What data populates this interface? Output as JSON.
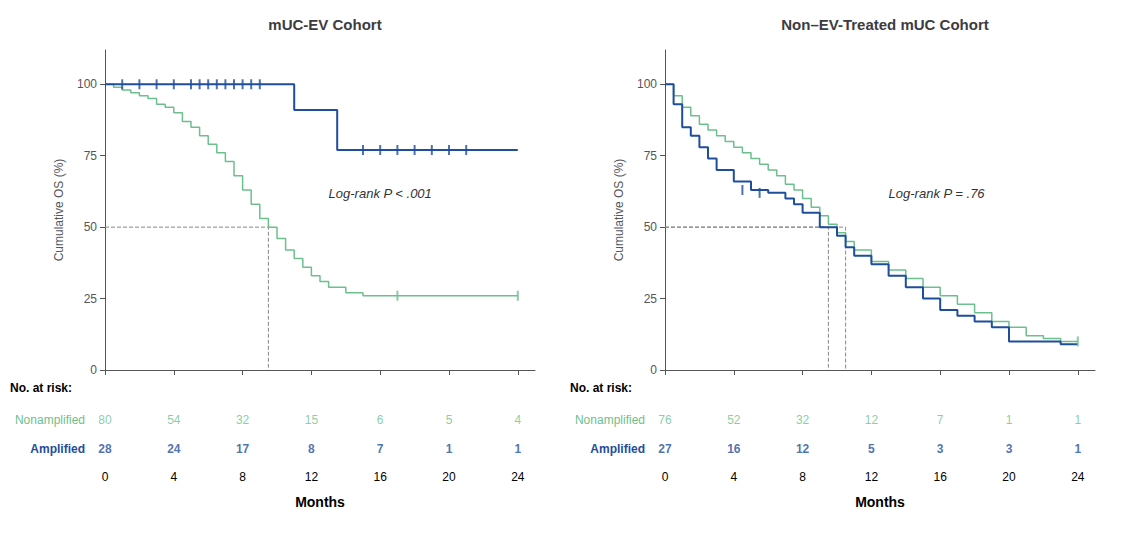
{
  "chart_data": [
    {
      "type": "step",
      "title": "mUC-EV Cohort",
      "xlabel": "Months",
      "ylabel": "Cumulative OS (%)",
      "xlim": [
        0,
        25
      ],
      "ylim": [
        0,
        112
      ],
      "xticks": [
        0,
        4,
        8,
        12,
        16,
        20,
        24
      ],
      "yticks": [
        0,
        25,
        50,
        75,
        100
      ],
      "grid": false,
      "series": [
        {
          "name": "Nonamplified",
          "color": "#6dbf8e",
          "x": [
            0,
            0.5,
            1,
            1.5,
            2,
            2.5,
            3,
            3.5,
            4,
            4.5,
            5,
            5.5,
            6,
            6.5,
            7,
            7.5,
            8,
            8.5,
            9,
            9.5,
            10,
            10.5,
            11,
            11.5,
            12,
            12.5,
            13,
            14,
            15,
            16,
            17,
            18,
            24
          ],
          "values": [
            100,
            99,
            98,
            97,
            96,
            95,
            93,
            92,
            90,
            87,
            85,
            82,
            79,
            76,
            73,
            68,
            63,
            58,
            53,
            50,
            46,
            42,
            39,
            36,
            33,
            31,
            29,
            27,
            26,
            26,
            26,
            26,
            26
          ],
          "censored_x": [
            17,
            24
          ],
          "censored_values": [
            26,
            26
          ],
          "at_risk": [
            80,
            54,
            32,
            15,
            6,
            5,
            4
          ]
        },
        {
          "name": "Amplified",
          "color": "#1f4e9c",
          "x": [
            0,
            10.5,
            11,
            13,
            13.5,
            24
          ],
          "values": [
            100,
            100,
            91,
            91,
            77,
            77
          ],
          "censored_x": [
            1,
            2,
            3,
            4,
            5,
            5.5,
            6,
            6.5,
            7,
            7.5,
            8,
            8.5,
            9,
            15,
            16,
            17,
            18,
            19,
            20,
            21
          ],
          "censored_values": [
            100,
            100,
            100,
            100,
            100,
            100,
            100,
            100,
            100,
            100,
            100,
            100,
            100,
            77,
            77,
            77,
            77,
            77,
            77,
            77
          ],
          "at_risk": [
            28,
            24,
            17,
            8,
            7,
            1,
            1
          ]
        }
      ],
      "median_lines": [
        {
          "x": 9.5,
          "y": 50
        }
      ],
      "annotations": [
        {
          "text": "Log-rank P < .001"
        }
      ],
      "at_risk_label": "No. at risk:"
    },
    {
      "type": "step",
      "title": "Non–EV-Treated mUC Cohort",
      "xlabel": "Months",
      "ylabel": "Cumulative OS (%)",
      "xlim": [
        0,
        25
      ],
      "ylim": [
        0,
        112
      ],
      "xticks": [
        0,
        4,
        8,
        12,
        16,
        20,
        24
      ],
      "yticks": [
        0,
        25,
        50,
        75,
        100
      ],
      "grid": false,
      "series": [
        {
          "name": "Nonamplified",
          "color": "#6dbf8e",
          "x": [
            0,
            0.5,
            1,
            1.5,
            2,
            2.5,
            3,
            3.5,
            4,
            4.5,
            5,
            5.5,
            6,
            6.5,
            7,
            7.5,
            8,
            8.5,
            9,
            9.5,
            10,
            10.5,
            11,
            12,
            13,
            14,
            15,
            16,
            17,
            18,
            19,
            20,
            21,
            22,
            23,
            24
          ],
          "values": [
            100,
            96,
            92,
            89,
            86,
            84,
            82,
            80,
            78,
            76,
            74,
            72,
            70,
            68,
            65,
            63,
            60,
            57,
            54,
            51,
            48,
            45,
            42,
            38,
            35,
            32,
            29,
            26,
            23,
            20,
            17,
            15,
            12,
            11,
            10,
            10
          ],
          "censored_x": [
            24
          ],
          "censored_values": [
            10
          ],
          "at_risk": [
            76,
            52,
            32,
            12,
            7,
            1,
            1
          ]
        },
        {
          "name": "Amplified",
          "color": "#1f4e9c",
          "x": [
            0,
            0.5,
            1,
            1.5,
            2,
            2.5,
            3,
            4,
            5,
            6,
            7,
            7.5,
            8,
            9,
            10,
            10.5,
            11,
            12,
            13,
            14,
            15,
            16,
            17,
            18,
            19,
            20,
            21,
            22,
            23,
            24
          ],
          "values": [
            100,
            93,
            85,
            82,
            78,
            74,
            70,
            66,
            63,
            62,
            60,
            58,
            55,
            50,
            47,
            43,
            40,
            37,
            33,
            29,
            25,
            21,
            19,
            17,
            15,
            10,
            10,
            10,
            9,
            9
          ],
          "censored_x": [
            4.5,
            5.5
          ],
          "censored_values": [
            63,
            62
          ],
          "at_risk": [
            27,
            16,
            12,
            5,
            3,
            3,
            1
          ]
        }
      ],
      "median_lines": [
        {
          "x": 9.5,
          "y": 50
        },
        {
          "x": 10.5,
          "y": 50
        }
      ],
      "annotations": [
        {
          "text": "Log-rank P = .76"
        }
      ],
      "at_risk_label": "No. at risk:"
    }
  ]
}
